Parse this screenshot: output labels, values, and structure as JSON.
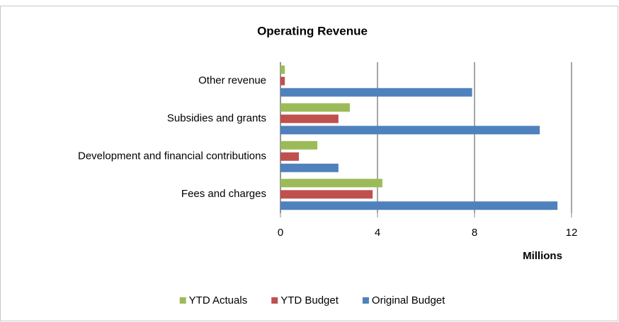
{
  "chart_data": {
    "type": "hbar",
    "title": "Operating Revenue",
    "categories": [
      "Other revenue",
      "Subsidies and grants",
      "Development and financial contributions",
      "Fees and charges"
    ],
    "series": [
      {
        "name": "YTD Actuals",
        "color": "#9bbb59",
        "values": [
          0.18,
          2.86,
          1.52,
          4.2
        ]
      },
      {
        "name": "YTD Budget",
        "color": "#c0504d",
        "values": [
          0.18,
          2.39,
          0.76,
          3.8
        ]
      },
      {
        "name": "Original Budget",
        "color": "#4f81bd",
        "values": [
          7.9,
          10.69,
          2.39,
          11.42
        ]
      }
    ],
    "x_label": "Millions",
    "xlim": [
      0,
      12
    ],
    "xticks": [
      0,
      4,
      8,
      12
    ],
    "grid": true,
    "legend": "bottom"
  }
}
